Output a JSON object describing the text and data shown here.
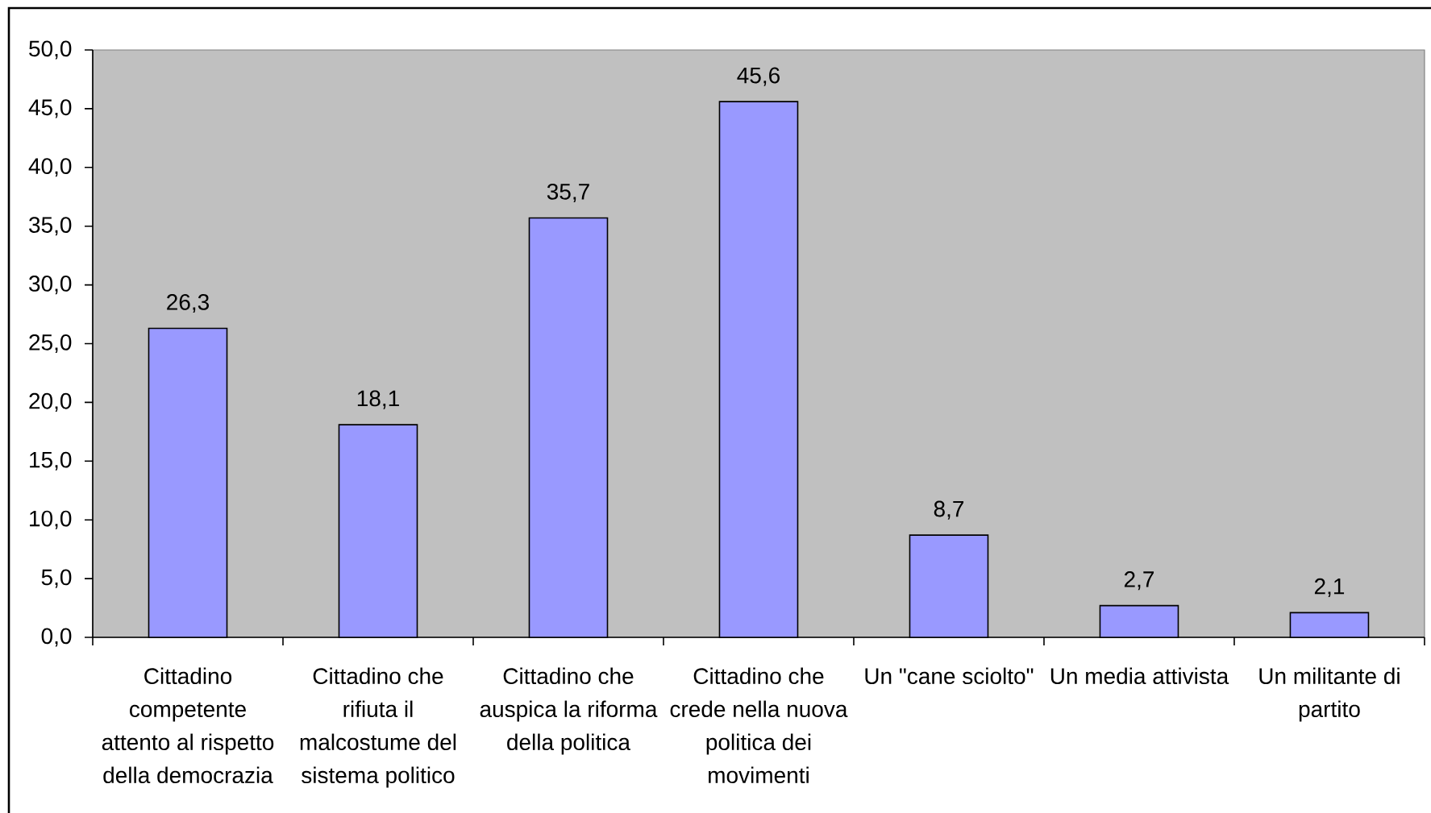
{
  "chart_data": {
    "type": "bar",
    "categories": [
      "Cittadino competente attento al rispetto della democrazia",
      "Cittadino che rifiuta il malcostume del sistema politico",
      "Cittadino che auspica la riforma della politica",
      "Cittadino che crede nella nuova politica dei movimenti",
      "Un \"cane sciolto\"",
      "Un media attivista",
      "Un militante di partito"
    ],
    "values": [
      26.3,
      18.1,
      35.7,
      45.6,
      8.7,
      2.7,
      2.1
    ],
    "value_labels": [
      "26,3",
      "18,1",
      "35,7",
      "45,6",
      "8,7",
      "2,7",
      "2,1"
    ],
    "color": "#9999ff",
    "ylim": [
      0,
      50
    ],
    "yticks": [
      {
        "value": 0,
        "label": "0,0"
      },
      {
        "value": 5,
        "label": "5,0"
      },
      {
        "value": 10,
        "label": "10,0"
      },
      {
        "value": 15,
        "label": "15,0"
      },
      {
        "value": 20,
        "label": "20,0"
      },
      {
        "value": 25,
        "label": "25,0"
      },
      {
        "value": 30,
        "label": "30,0"
      },
      {
        "value": 35,
        "label": "35,0"
      },
      {
        "value": 40,
        "label": "40,0"
      },
      {
        "value": 45,
        "label": "45,0"
      },
      {
        "value": 50,
        "label": "50,0"
      }
    ]
  }
}
